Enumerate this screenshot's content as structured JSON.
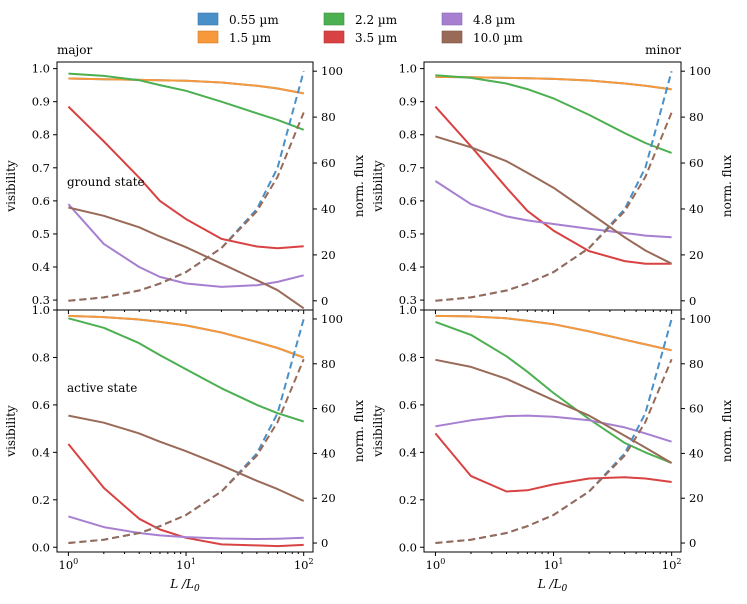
{
  "legend": [
    {
      "label": "0.55 µm",
      "color": "#4a90c8"
    },
    {
      "label": "1.5 µm",
      "color": "#f7983a"
    },
    {
      "label": "2.2 µm",
      "color": "#4caf50"
    },
    {
      "label": "3.5 µm",
      "color": "#d94242"
    },
    {
      "label": "4.8 µm",
      "color": "#a77fd1"
    },
    {
      "label": "10.0 µm",
      "color": "#9a6a58"
    }
  ],
  "chart_data": [
    {
      "type": "line",
      "title": "major",
      "annotation": "ground state",
      "xlabel": "L /L0",
      "ylabel": "visibility",
      "ylabel_right": "norm. flux",
      "xscale": "log",
      "xlim": [
        0.8,
        120
      ],
      "ylim": [
        0.27,
        1.02
      ],
      "y2lim": [
        -4,
        104
      ],
      "xticks": [
        "10^0",
        "10^1",
        "10^2"
      ],
      "yticks": [
        0.3,
        0.4,
        0.5,
        0.6,
        0.7,
        0.8,
        0.9,
        1.0
      ],
      "y2ticks": [
        0,
        20,
        40,
        60,
        80,
        100
      ],
      "x": [
        1,
        2,
        4,
        6,
        10,
        20,
        40,
        60,
        100
      ],
      "series": [
        {
          "name": "0.55 µm",
          "values": [
            0.97,
            0.968,
            0.966,
            0.965,
            0.963,
            0.958,
            0.948,
            0.94,
            0.925
          ]
        },
        {
          "name": "1.5 µm",
          "values": [
            0.97,
            0.968,
            0.966,
            0.965,
            0.963,
            0.958,
            0.948,
            0.94,
            0.925
          ]
        },
        {
          "name": "2.2 µm",
          "values": [
            0.985,
            0.978,
            0.965,
            0.95,
            0.933,
            0.9,
            0.865,
            0.845,
            0.815
          ]
        },
        {
          "name": "3.5 µm",
          "values": [
            0.885,
            0.78,
            0.67,
            0.6,
            0.545,
            0.485,
            0.462,
            0.457,
            0.463
          ]
        },
        {
          "name": "4.8 µm",
          "values": [
            0.59,
            0.47,
            0.4,
            0.37,
            0.35,
            0.34,
            0.345,
            0.355,
            0.375
          ]
        },
        {
          "name": "10.0 µm",
          "values": [
            0.58,
            0.555,
            0.52,
            0.492,
            0.46,
            0.41,
            0.36,
            0.33,
            0.275
          ]
        }
      ],
      "flux": [
        {
          "name": "0.55 µm",
          "values": [
            0,
            1.5,
            4.5,
            7.5,
            12.5,
            23,
            40,
            58,
            100
          ]
        },
        {
          "name": "10.0 µm",
          "values": [
            0,
            1.5,
            4.5,
            7.5,
            12.5,
            23,
            39,
            54,
            82
          ]
        }
      ]
    },
    {
      "type": "line",
      "title": "minor",
      "annotation": "",
      "xlabel": "L /L0",
      "ylabel": "visibility",
      "ylabel_right": "norm. flux",
      "xscale": "log",
      "xlim": [
        0.8,
        120
      ],
      "ylim": [
        0.27,
        1.02
      ],
      "y2lim": [
        -4,
        104
      ],
      "xticks": [
        "10^0",
        "10^1",
        "10^2"
      ],
      "yticks": [
        0.3,
        0.4,
        0.5,
        0.6,
        0.7,
        0.8,
        0.9,
        1.0
      ],
      "y2ticks": [
        0,
        20,
        40,
        60,
        80,
        100
      ],
      "x": [
        1,
        2,
        4,
        6,
        10,
        20,
        40,
        60,
        100
      ],
      "series": [
        {
          "name": "0.55 µm",
          "values": [
            0.975,
            0.974,
            0.972,
            0.971,
            0.969,
            0.964,
            0.955,
            0.948,
            0.937
          ]
        },
        {
          "name": "1.5 µm",
          "values": [
            0.975,
            0.974,
            0.972,
            0.971,
            0.969,
            0.964,
            0.955,
            0.948,
            0.937
          ]
        },
        {
          "name": "2.2 µm",
          "values": [
            0.98,
            0.972,
            0.955,
            0.938,
            0.91,
            0.86,
            0.805,
            0.775,
            0.745
          ]
        },
        {
          "name": "3.5 µm",
          "values": [
            0.885,
            0.765,
            0.64,
            0.57,
            0.51,
            0.448,
            0.418,
            0.41,
            0.41
          ]
        },
        {
          "name": "4.8 µm",
          "values": [
            0.66,
            0.59,
            0.553,
            0.541,
            0.53,
            0.516,
            0.503,
            0.495,
            0.49
          ]
        },
        {
          "name": "10.0 µm",
          "values": [
            0.795,
            0.762,
            0.72,
            0.685,
            0.64,
            0.565,
            0.49,
            0.45,
            0.41
          ]
        }
      ],
      "flux": [
        {
          "name": "0.55 µm",
          "values": [
            0,
            1.5,
            4.5,
            7.5,
            12.5,
            23,
            40,
            58,
            100
          ]
        },
        {
          "name": "10.0 µm",
          "values": [
            0,
            1.5,
            4.5,
            7.5,
            12.5,
            23,
            39,
            54,
            82
          ]
        }
      ]
    },
    {
      "type": "line",
      "title": "",
      "annotation": "active state",
      "xlabel": "L /L0",
      "ylabel": "visibility",
      "ylabel_right": "norm. flux",
      "xscale": "log",
      "xlim": [
        0.8,
        120
      ],
      "ylim": [
        -0.02,
        1.0
      ],
      "y2lim": [
        -4,
        104
      ],
      "xticks": [
        "10^0",
        "10^1",
        "10^2"
      ],
      "yticks": [
        0.0,
        0.2,
        0.4,
        0.6,
        0.8,
        1.0
      ],
      "y2ticks": [
        0,
        20,
        40,
        60,
        80,
        100
      ],
      "x": [
        1,
        2,
        4,
        6,
        10,
        20,
        40,
        60,
        100
      ],
      "series": [
        {
          "name": "0.55 µm",
          "values": [
            0.975,
            0.97,
            0.96,
            0.95,
            0.935,
            0.905,
            0.865,
            0.84,
            0.8
          ]
        },
        {
          "name": "1.5 µm",
          "values": [
            0.975,
            0.97,
            0.96,
            0.95,
            0.935,
            0.905,
            0.865,
            0.84,
            0.8
          ]
        },
        {
          "name": "2.2 µm",
          "values": [
            0.965,
            0.925,
            0.86,
            0.81,
            0.75,
            0.67,
            0.6,
            0.565,
            0.53
          ]
        },
        {
          "name": "3.5 µm",
          "values": [
            0.435,
            0.25,
            0.12,
            0.075,
            0.04,
            0.012,
            0.008,
            0.005,
            0.01
          ]
        },
        {
          "name": "4.8 µm",
          "values": [
            0.13,
            0.085,
            0.06,
            0.05,
            0.043,
            0.037,
            0.035,
            0.036,
            0.04
          ]
        },
        {
          "name": "10.0 µm",
          "values": [
            0.555,
            0.525,
            0.48,
            0.445,
            0.405,
            0.345,
            0.28,
            0.245,
            0.195
          ]
        }
      ],
      "flux": [
        {
          "name": "0.55 µm",
          "values": [
            0,
            1.5,
            4.5,
            7.5,
            12.5,
            23,
            40,
            58,
            100
          ]
        },
        {
          "name": "10.0 µm",
          "values": [
            0,
            1.5,
            4.5,
            7.5,
            12.5,
            23,
            39,
            54,
            82
          ]
        }
      ]
    },
    {
      "type": "line",
      "title": "",
      "annotation": "",
      "xlabel": "L /L0",
      "ylabel": "visibility",
      "ylabel_right": "norm. flux",
      "xscale": "log",
      "xlim": [
        0.8,
        120
      ],
      "ylim": [
        -0.02,
        1.0
      ],
      "y2lim": [
        -4,
        104
      ],
      "xticks": [
        "10^0",
        "10^1",
        "10^2"
      ],
      "yticks": [
        0.0,
        0.2,
        0.4,
        0.6,
        0.8,
        1.0
      ],
      "y2ticks": [
        0,
        20,
        40,
        60,
        80,
        100
      ],
      "x": [
        1,
        2,
        4,
        6,
        10,
        20,
        40,
        60,
        100
      ],
      "series": [
        {
          "name": "0.55 µm",
          "values": [
            0.975,
            0.973,
            0.965,
            0.955,
            0.94,
            0.91,
            0.875,
            0.855,
            0.83
          ]
        },
        {
          "name": "1.5 µm",
          "values": [
            0.975,
            0.973,
            0.965,
            0.955,
            0.94,
            0.91,
            0.875,
            0.855,
            0.83
          ]
        },
        {
          "name": "2.2 µm",
          "values": [
            0.95,
            0.895,
            0.805,
            0.74,
            0.65,
            0.54,
            0.44,
            0.4,
            0.355
          ]
        },
        {
          "name": "3.5 µm",
          "values": [
            0.48,
            0.3,
            0.235,
            0.24,
            0.265,
            0.29,
            0.295,
            0.29,
            0.275
          ]
        },
        {
          "name": "4.8 µm",
          "values": [
            0.51,
            0.535,
            0.553,
            0.555,
            0.55,
            0.535,
            0.505,
            0.48,
            0.445
          ]
        },
        {
          "name": "10.0 µm",
          "values": [
            0.79,
            0.76,
            0.71,
            0.67,
            0.62,
            0.555,
            0.47,
            0.42,
            0.355
          ]
        }
      ],
      "flux": [
        {
          "name": "0.55 µm",
          "values": [
            0,
            1.5,
            4.5,
            7.5,
            12.5,
            23,
            40,
            58,
            100
          ]
        },
        {
          "name": "10.0 µm",
          "values": [
            0,
            1.5,
            4.5,
            7.5,
            12.5,
            23,
            39,
            54,
            82
          ]
        }
      ]
    }
  ]
}
